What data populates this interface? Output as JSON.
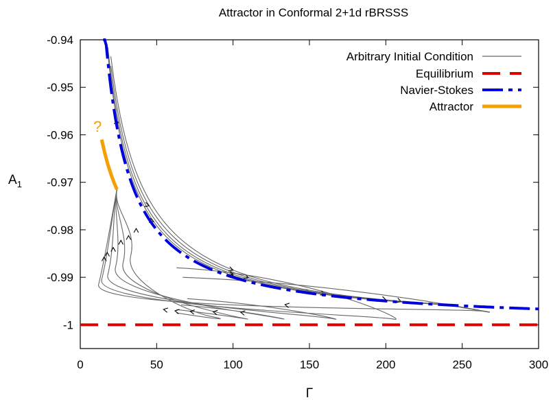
{
  "chart_data": {
    "type": "line",
    "title": "Attractor in Conformal 2+1d rBRSSS",
    "xlabel": "Γ",
    "ylabel": "A",
    "ylabel_sub": "1",
    "xlim": [
      0,
      300
    ],
    "ylim": [
      -1.005,
      -0.94
    ],
    "x_ticks": [
      0,
      50,
      100,
      150,
      200,
      250,
      300
    ],
    "y_ticks": [
      -0.94,
      -0.95,
      -0.96,
      -0.97,
      -0.98,
      -0.99,
      -1
    ],
    "x_tick_labels": [
      "0",
      "50",
      "100",
      "150",
      "200",
      "250",
      "300"
    ],
    "y_tick_labels": [
      "-0.94",
      "-0.95",
      "-0.96",
      "-0.97",
      "-0.98",
      "-0.99",
      "-1"
    ],
    "grid": false,
    "legend_position": "top-right",
    "annotation": "?",
    "colors": {
      "arbitrary": "#666666",
      "equilibrium": "#dd0000",
      "navier_stokes": "#0000dd",
      "attractor": "#f5a000",
      "annotation": "#f5a000"
    },
    "series": [
      {
        "name": "Arbitrary Initial Condition",
        "style": "thin-solid",
        "curves": [
          {
            "start": [
              24,
              -0.9715
            ],
            "turn": [
              33,
              -0.9855
            ],
            "bottom": [
              85,
              -0.9982
            ],
            "end": [
              63,
              -0.9975
            ],
            "arrow_t": 0.45
          },
          {
            "start": [
              24,
              -0.9715
            ],
            "turn": [
              28,
              -0.987
            ],
            "bottom": [
              105,
              -0.9985
            ],
            "end": [
              63,
              -0.9968
            ],
            "arrow_t": 0.45
          },
          {
            "start": [
              24,
              -0.9715
            ],
            "turn": [
              23,
              -0.988
            ],
            "bottom": [
              130,
              -0.9986
            ],
            "end": [
              66,
              -0.9958
            ],
            "arrow_t": 0.45
          },
          {
            "start": [
              24,
              -0.9715
            ],
            "turn": [
              18,
              -0.9895
            ],
            "bottom": [
              165,
              -0.9987
            ],
            "end": [
              70,
              -0.9945
            ],
            "arrow_t": 0.45
          },
          {
            "start": [
              24,
              -0.9715
            ],
            "turn": [
              14,
              -0.9905
            ],
            "bottom": [
              205,
              -0.9988
            ],
            "end": [
              63,
              -0.988
            ],
            "arrow_t": 0.45
          },
          {
            "start": [
              24,
              -0.9715
            ],
            "turn": [
              12,
              -0.9915
            ],
            "bottom": [
              265,
              -0.9972
            ],
            "end": [
              67,
              -0.99
            ],
            "arrow_t": 0.45
          }
        ],
        "decay_curves": [
          {
            "offset": 0.0015,
            "arrow_x": [
              48,
              100,
              150
            ]
          },
          {
            "offset": 0.0028,
            "arrow_x": [
              25,
              100,
              160
            ]
          },
          {
            "offset": 0.0045,
            "arrow_x": [
              45,
              110,
              210
            ]
          },
          {
            "offset": 0.0065,
            "arrow_x": [
              100,
              200
            ]
          }
        ]
      },
      {
        "name": "Equilibrium",
        "style": "red-dashed",
        "x": [
          0,
          300
        ],
        "y": [
          -1,
          -1
        ]
      },
      {
        "name": "Navier-Stokes",
        "style": "blue-dash-dot",
        "x": [
          15,
          20,
          25,
          30,
          40,
          50,
          60,
          70,
          80,
          100,
          120,
          150,
          200,
          250,
          300
        ],
        "y": [
          -0.9333,
          -0.95,
          -0.96,
          -0.9667,
          -0.975,
          -0.98,
          -0.9833,
          -0.9857,
          -0.9875,
          -0.99,
          -0.9917,
          -0.9933,
          -0.995,
          -0.996,
          -0.9967
        ]
      },
      {
        "name": "Attractor",
        "style": "orange-thick",
        "x": [
          14,
          16,
          18,
          20,
          22,
          24
        ],
        "y": [
          -0.961,
          -0.9638,
          -0.9662,
          -0.9682,
          -0.97,
          -0.9715
        ]
      }
    ]
  }
}
